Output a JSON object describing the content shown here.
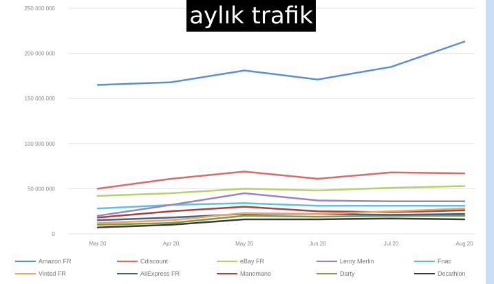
{
  "chart_data": {
    "type": "line",
    "title": "aylık trafik",
    "categories": [
      "Mar 20",
      "Apr 20",
      "May 20",
      "Jun 20",
      "Jul 20",
      "Aug 20"
    ],
    "ylim": [
      0,
      250000000
    ],
    "y_ticks": [
      "0",
      "50 000 000",
      "100 000 000",
      "150 000 000",
      "200 000 000",
      "250 000 000"
    ],
    "grid": true,
    "legend_position": "bottom",
    "series": [
      {
        "name": "Amazon FR",
        "color": "#5b8fd0",
        "values": [
          165000000,
          168000000,
          181000000,
          171000000,
          185000000,
          213000000
        ]
      },
      {
        "name": "Cdiscount",
        "color": "#d96a6a",
        "values": [
          50000000,
          61000000,
          69000000,
          61000000,
          68000000,
          67000000
        ]
      },
      {
        "name": "eBay FR",
        "color": "#b8d06a",
        "values": [
          42000000,
          45000000,
          50000000,
          48000000,
          51000000,
          53000000
        ]
      },
      {
        "name": "Leroy Merlin",
        "color": "#9a82c9",
        "values": [
          20000000,
          32000000,
          45000000,
          37000000,
          36000000,
          36000000
        ]
      },
      {
        "name": "Fnac",
        "color": "#5ec2dc",
        "values": [
          28000000,
          32000000,
          34000000,
          31000000,
          31000000,
          31000000
        ]
      },
      {
        "name": "Vinted FR",
        "color": "#f0a35b",
        "values": [
          12000000,
          15000000,
          23000000,
          22000000,
          25000000,
          28000000
        ]
      },
      {
        "name": "AliExpress FR",
        "color": "#44608a",
        "values": [
          15000000,
          18000000,
          22000000,
          22000000,
          21000000,
          22000000
        ]
      },
      {
        "name": "Manomano",
        "color": "#a8403f",
        "values": [
          18000000,
          25000000,
          30000000,
          25000000,
          24000000,
          26000000
        ]
      },
      {
        "name": "Darty",
        "color": "#7e9a4a",
        "values": [
          10000000,
          12000000,
          20000000,
          19000000,
          20000000,
          20000000
        ]
      },
      {
        "name": "Decathlon",
        "color": "#3a3a3a",
        "values": [
          7000000,
          10000000,
          16000000,
          16000000,
          17000000,
          16000000
        ]
      }
    ]
  }
}
